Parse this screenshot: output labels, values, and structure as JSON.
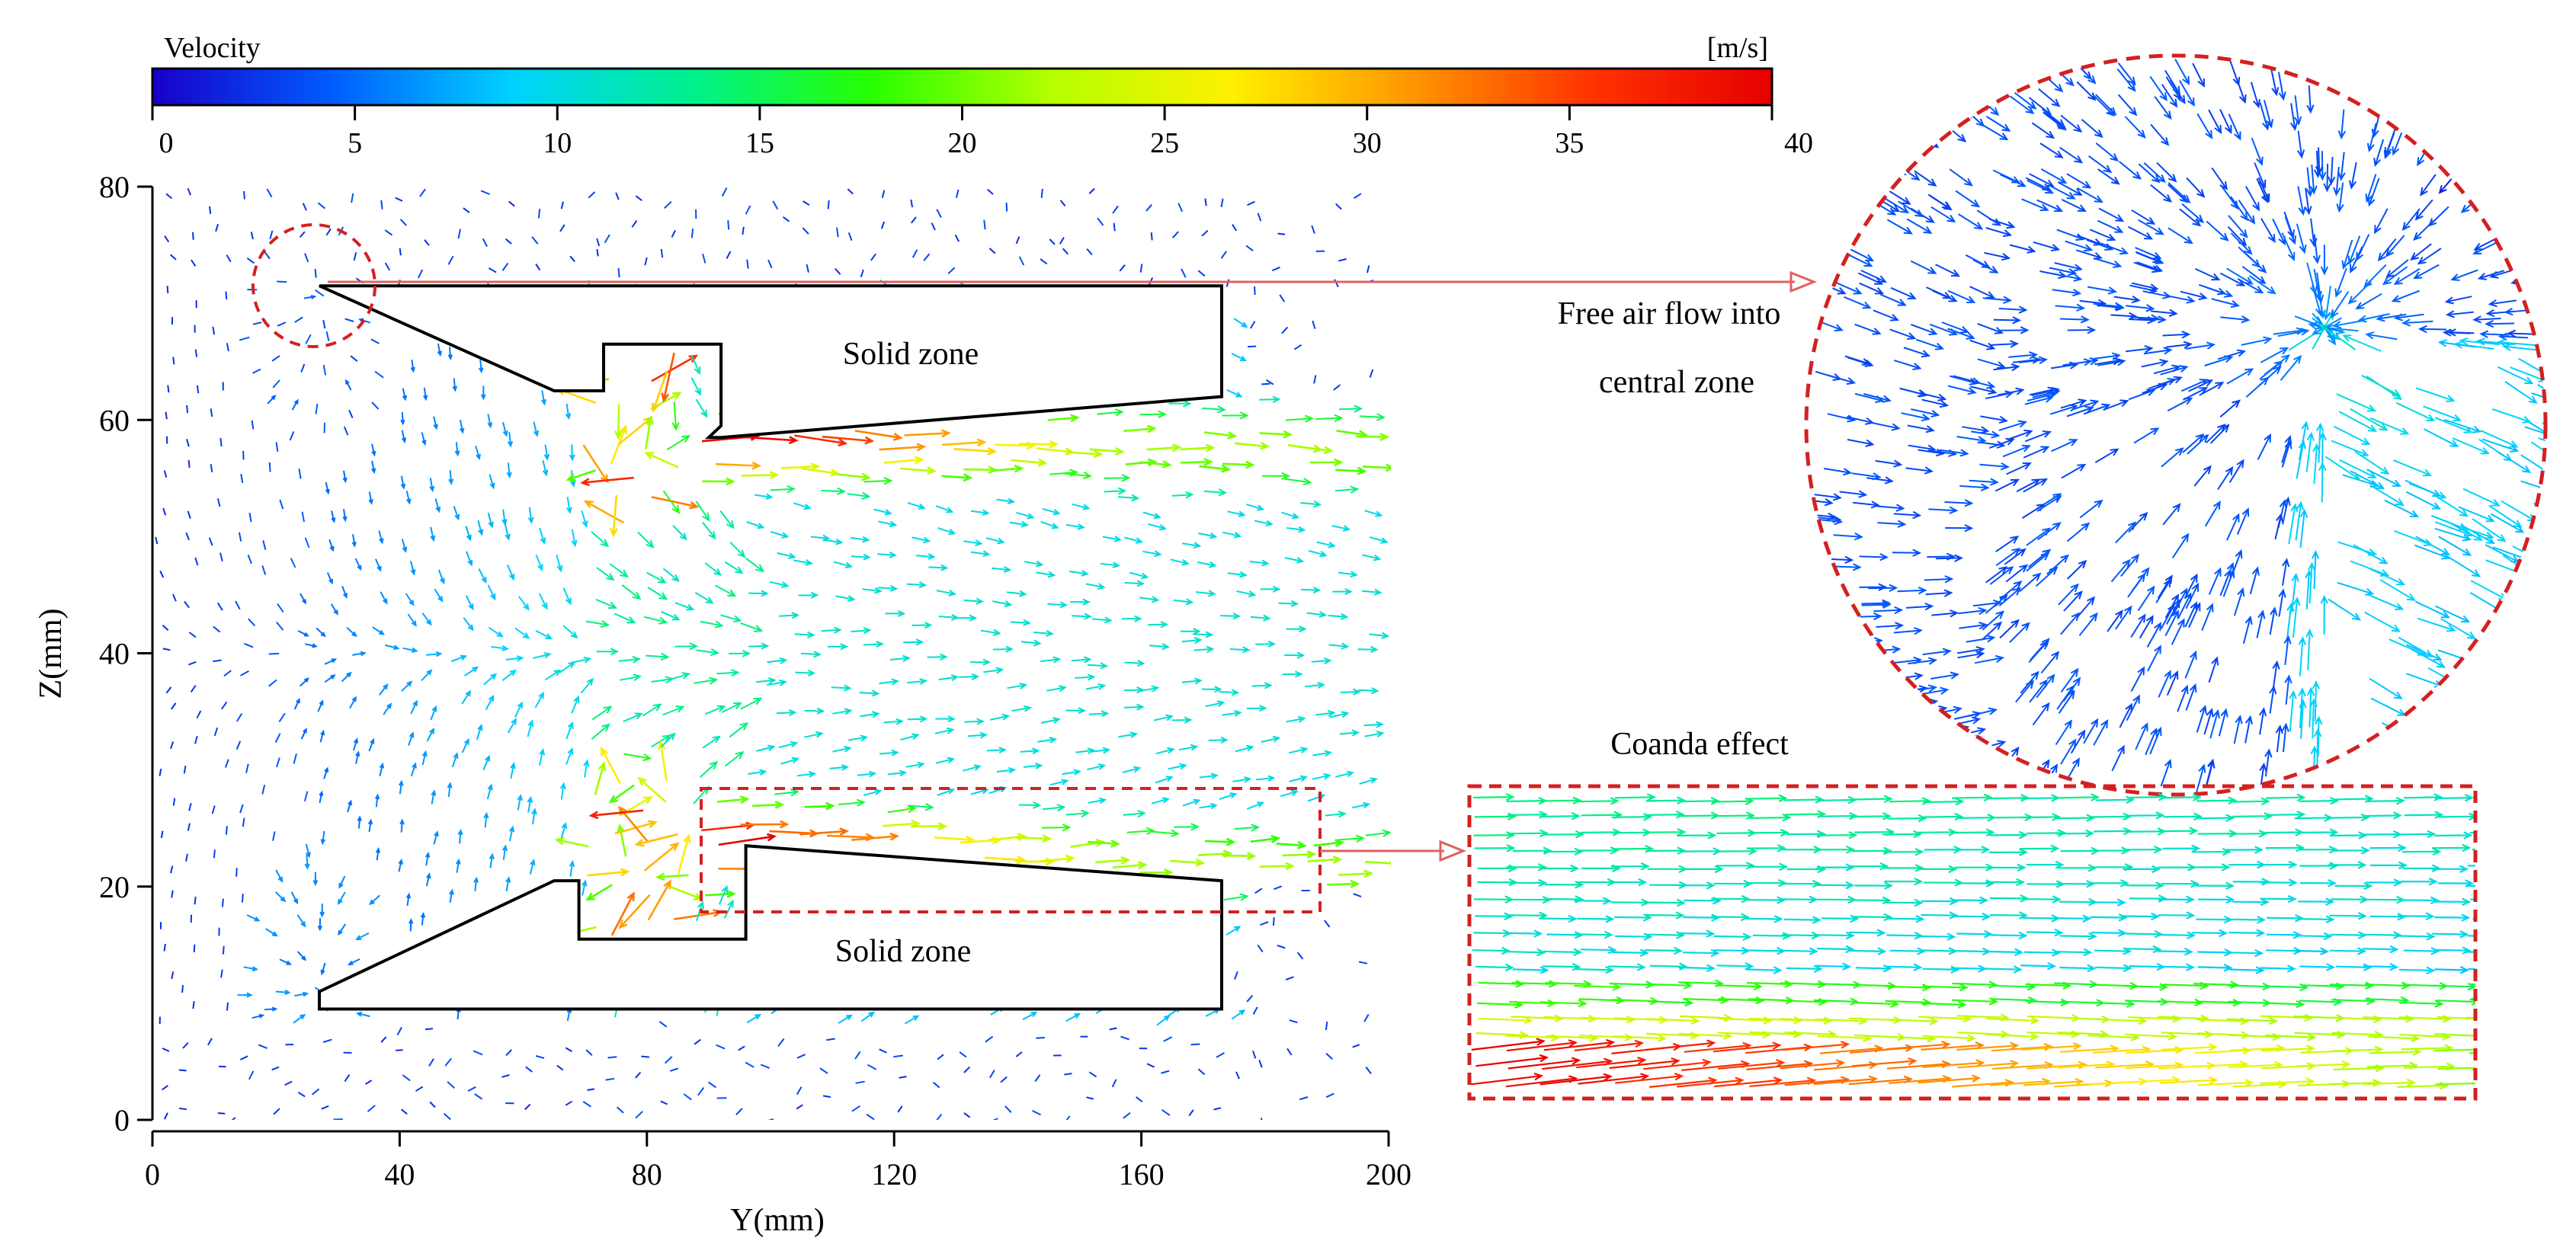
{
  "colorbar": {
    "title": "Velocity",
    "unit": "[m/s]",
    "ticks": [
      0,
      5,
      10,
      15,
      20,
      25,
      30,
      35,
      40
    ],
    "min": 0,
    "max": 40,
    "colors": [
      "#1800c8",
      "#005cff",
      "#00d2ff",
      "#00f08c",
      "#28ff00",
      "#b4ff00",
      "#fff000",
      "#ff9600",
      "#ff3200",
      "#e60000"
    ]
  },
  "chart_data": {
    "type": "scatter",
    "xlabel": "Y(mm)",
    "ylabel": "Z(mm)",
    "xlim": [
      0,
      200
    ],
    "ylim": [
      0,
      80
    ],
    "xticks": [
      0,
      40,
      80,
      120,
      160,
      200
    ],
    "yticks": [
      0,
      20,
      40,
      60,
      80
    ],
    "solid_zones": [
      {
        "label": "Solid zone",
        "outline": [
          [
            27,
            71.5
          ],
          [
            65,
            62.5
          ],
          [
            73,
            62.5
          ],
          [
            73,
            66.5
          ],
          [
            92,
            66.5
          ],
          [
            92,
            59.5
          ],
          [
            90,
            58.5
          ],
          [
            92,
            58.5
          ],
          [
            173,
            62
          ],
          [
            173,
            71.5
          ]
        ]
      },
      {
        "label": "Solid zone",
        "outline": [
          [
            27,
            9.5
          ],
          [
            27,
            11
          ],
          [
            65,
            20.5
          ],
          [
            69,
            20.5
          ],
          [
            69,
            15.5
          ],
          [
            96,
            15.5
          ],
          [
            96,
            23.5
          ],
          [
            173,
            20.5
          ],
          [
            173,
            9.5
          ]
        ]
      }
    ],
    "vector_field": {
      "quantity": "Velocity [m/s]",
      "zones": [
        {
          "region": "outer-left inflow",
          "y_range": [
            0,
            30
          ],
          "speed": 5
        },
        {
          "region": "upper inlet vortex",
          "center": [
            27,
            71
          ],
          "speed": 3
        },
        {
          "region": "lower inlet vortex",
          "center": [
            27,
            11
          ],
          "speed": 5
        },
        {
          "region": "central contraction",
          "y_range": [
            60,
            95
          ],
          "speed": 12
        },
        {
          "region": "upper nozzle jet",
          "y_range": [
            92,
            200
          ],
          "z": 58,
          "speed_max": 40,
          "speed_far": 22
        },
        {
          "region": "lower nozzle jet",
          "y_range": [
            92,
            200
          ],
          "z": 23,
          "speed_max": 40,
          "speed_far": 22
        },
        {
          "region": "downstream core",
          "y_range": [
            100,
            200
          ],
          "z_range": [
            28,
            55
          ],
          "speed": 10
        },
        {
          "region": "ambient outer",
          "speed": 2
        }
      ]
    }
  },
  "annotations": {
    "solid_zone_top": "Solid zone",
    "solid_zone_bottom": "Solid zone",
    "free_air_line1": "Free air flow into",
    "free_air_line2": "central zone",
    "coanda": "Coanda effect"
  }
}
